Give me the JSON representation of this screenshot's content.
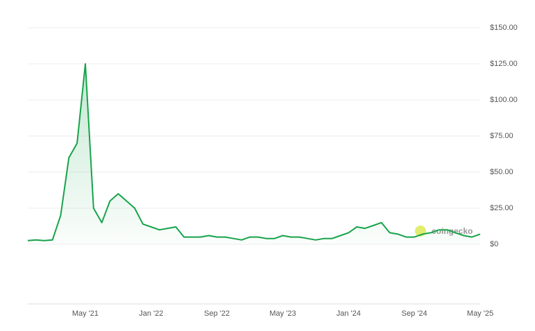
{
  "chart_data": {
    "type": "line",
    "categories": [
      null,
      null,
      null,
      null,
      null,
      null,
      null,
      "May '21",
      null,
      null,
      null,
      null,
      null,
      null,
      null,
      "Jan '22",
      null,
      null,
      null,
      null,
      null,
      null,
      null,
      "Sep '22",
      null,
      null,
      null,
      null,
      null,
      null,
      null,
      "May '23",
      null,
      null,
      null,
      null,
      null,
      null,
      null,
      "Jan '24",
      null,
      null,
      null,
      null,
      null,
      null,
      null,
      "Sep '24",
      null,
      null,
      null,
      null,
      null,
      null,
      null,
      "May '25"
    ],
    "series": [
      {
        "color": "#16a34a",
        "values": [
          2.5,
          3,
          2.5,
          3,
          20,
          60,
          70,
          125,
          25,
          15,
          30,
          35,
          30,
          25,
          14,
          12,
          10,
          11,
          12,
          5,
          5,
          5,
          6,
          5,
          5,
          4,
          3,
          5,
          5,
          4,
          4,
          6,
          5,
          5,
          4,
          3,
          4,
          4,
          6,
          8,
          12,
          11,
          13,
          15,
          8,
          7,
          5,
          5,
          7,
          8,
          10,
          10,
          8,
          6,
          5,
          7
        ]
      }
    ],
    "ylim": [
      0,
      150
    ],
    "yticks": [
      {
        "value": 0,
        "label": "$0"
      },
      {
        "value": 25,
        "label": "$25.00"
      },
      {
        "value": 50,
        "label": "$50.00"
      },
      {
        "value": 75,
        "label": "$75.00"
      },
      {
        "value": 100,
        "label": "$100.00"
      },
      {
        "value": 125,
        "label": "$125.00"
      },
      {
        "value": 150,
        "label": "$150.00"
      }
    ],
    "grid": true,
    "watermark": "coingecko"
  }
}
